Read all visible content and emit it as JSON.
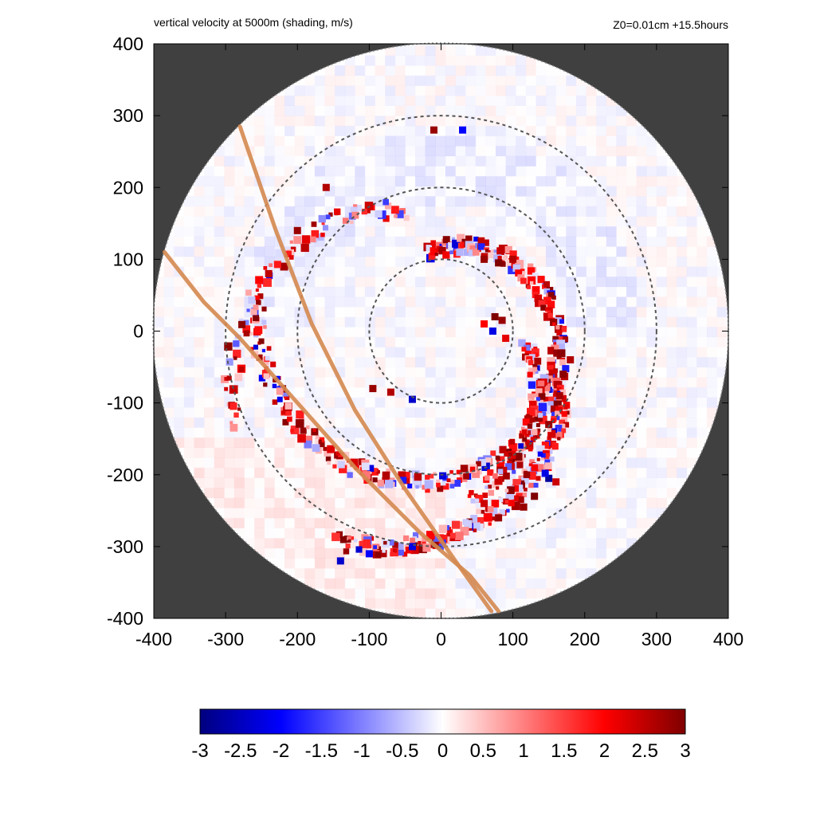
{
  "chart_data": {
    "type": "heatmap",
    "title": "vertical velocity at 5000m (shading, m/s)",
    "subtitle": "Z0=0.01cm  +15.5hours",
    "xlabel": "",
    "ylabel": "",
    "xlim": [
      -400,
      400
    ],
    "ylim": [
      -400,
      400
    ],
    "x_ticks": [
      "-400",
      "-300",
      "-200",
      "-100",
      "0",
      "100",
      "200",
      "300",
      "400"
    ],
    "y_ticks": [
      "400",
      "300",
      "200",
      "100",
      "0",
      "-100",
      "-200",
      "-300",
      "-400"
    ],
    "x_tick_values": [
      -400,
      -300,
      -200,
      -100,
      0,
      100,
      200,
      300,
      400
    ],
    "y_tick_values": [
      400,
      300,
      200,
      100,
      0,
      -100,
      -200,
      -300,
      -400
    ],
    "domain_radius": 400,
    "background_color": "#404040",
    "range_rings": [
      100,
      200,
      300
    ],
    "colorbar": {
      "min": -3,
      "max": 3,
      "labels": [
        "-3",
        "-2.5",
        "-2",
        "-1.5",
        "-1",
        "-0.5",
        "0",
        "0.5",
        "1",
        "1.5",
        "2",
        "2.5",
        "3"
      ],
      "values": [
        -3,
        -2.5,
        -2,
        -1.5,
        -1,
        -0.5,
        0,
        0.5,
        1,
        1.5,
        2,
        2.5,
        3
      ],
      "colors": [
        "#00007f",
        "#0000ff",
        "#ffffff",
        "#ff0000",
        "#7f0000"
      ]
    },
    "track_lines": {
      "color": "#d4884f",
      "lines": [
        [
          [
            -280,
            285
          ],
          [
            -230,
            140
          ],
          [
            -180,
            10
          ],
          [
            -120,
            -110
          ],
          [
            -50,
            -220
          ],
          [
            20,
            -320
          ],
          [
            70,
            -390
          ]
        ],
        [
          [
            -385,
            110
          ],
          [
            -330,
            40
          ],
          [
            -280,
            -10
          ],
          [
            -200,
            -100
          ],
          [
            -120,
            -190
          ],
          [
            -30,
            -280
          ],
          [
            40,
            -340
          ],
          [
            80,
            -390
          ]
        ]
      ]
    },
    "updraft_spiral": {
      "band1_r_start": 110,
      "band1_r_end": 260,
      "band2_r_start": 90,
      "band2_r_end": 320
    },
    "points": [
      {
        "x": 75,
        "y": 20,
        "v": 3.0
      },
      {
        "x": 85,
        "y": 15,
        "v": 2.8
      },
      {
        "x": 72,
        "y": 0,
        "v": -2.2
      },
      {
        "x": 90,
        "y": -10,
        "v": 2.2
      },
      {
        "x": 60,
        "y": 10,
        "v": 2.0
      },
      {
        "x": 150,
        "y": -205,
        "v": -2.8
      },
      {
        "x": 145,
        "y": -198,
        "v": -2.2
      },
      {
        "x": 160,
        "y": -210,
        "v": 2.4
      },
      {
        "x": 130,
        "y": -230,
        "v": 3.0
      },
      {
        "x": 115,
        "y": -245,
        "v": 2.8
      },
      {
        "x": -40,
        "y": -95,
        "v": -2.4
      },
      {
        "x": -70,
        "y": -85,
        "v": 2.6
      },
      {
        "x": -95,
        "y": -80,
        "v": 2.8
      },
      {
        "x": 170,
        "y": -60,
        "v": 2.9
      },
      {
        "x": 165,
        "y": -90,
        "v": 2.7
      },
      {
        "x": 180,
        "y": -40,
        "v": 2.6
      },
      {
        "x": 150,
        "y": -130,
        "v": 2.8
      },
      {
        "x": 60,
        "y": 100,
        "v": 2.8
      },
      {
        "x": 80,
        "y": 95,
        "v": 3.0
      },
      {
        "x": 100,
        "y": 100,
        "v": 2.6
      },
      {
        "x": -240,
        "y": 80,
        "v": 2.5
      },
      {
        "x": -200,
        "y": 140,
        "v": 2.8
      },
      {
        "x": -160,
        "y": 200,
        "v": 2.6
      },
      {
        "x": -10,
        "y": 280,
        "v": 2.8
      },
      {
        "x": 30,
        "y": 280,
        "v": -2.0
      },
      {
        "x": -140,
        "y": -320,
        "v": -2.4
      },
      {
        "x": -100,
        "y": -310,
        "v": -2.0
      },
      {
        "x": -40,
        "y": -300,
        "v": -2.2
      },
      {
        "x": 60,
        "y": -240,
        "v": 2.4
      },
      {
        "x": 80,
        "y": -260,
        "v": 2.8
      }
    ]
  }
}
